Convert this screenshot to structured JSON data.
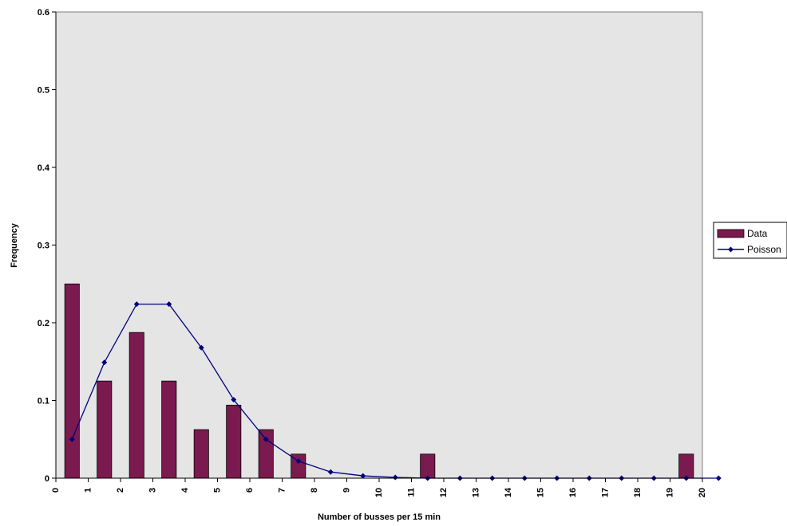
{
  "chart_data": {
    "type": "bar",
    "xlabel": "Number of busses per 15 min",
    "ylabel": "Frequency",
    "ylim": [
      0,
      0.6
    ],
    "xlim": [
      0,
      20
    ],
    "xticks": [
      0,
      1,
      2,
      3,
      4,
      5,
      6,
      7,
      8,
      9,
      10,
      11,
      12,
      13,
      14,
      15,
      16,
      17,
      18,
      19,
      20
    ],
    "yticks": [
      0,
      0.1,
      0.2,
      0.3,
      0.4,
      0.5,
      0.6
    ],
    "ytick_labels": [
      "0",
      "0.1",
      "0.2",
      "0.3",
      "0.4",
      "0.5",
      "0.6"
    ],
    "grid": false,
    "legend_position": "right",
    "series": [
      {
        "name": "Data",
        "kind": "bar",
        "color": "#7b1a4f",
        "x": [
          0,
          1,
          2,
          3,
          4,
          5,
          6,
          7,
          11,
          19
        ],
        "values": [
          0.25,
          0.125,
          0.1875,
          0.125,
          0.0625,
          0.094,
          0.0625,
          0.031,
          0.031,
          0.031
        ]
      },
      {
        "name": "Poisson",
        "kind": "line",
        "color": "#000080",
        "x": [
          0,
          1,
          2,
          3,
          4,
          5,
          6,
          7,
          8,
          9,
          10,
          11,
          12,
          13,
          14,
          15,
          16,
          17,
          18,
          19,
          20
        ],
        "values": [
          0.05,
          0.149,
          0.224,
          0.224,
          0.168,
          0.101,
          0.05,
          0.022,
          0.008,
          0.003,
          0.001,
          0,
          0,
          0,
          0,
          0,
          0,
          0,
          0,
          0,
          0
        ]
      }
    ]
  }
}
